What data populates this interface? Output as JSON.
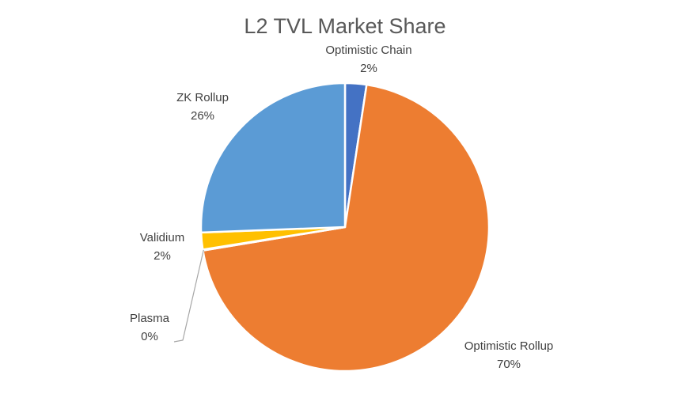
{
  "chart_data": {
    "type": "pie",
    "title": "L2 TVL Market Share",
    "categories": [
      "Optimistic Chain",
      "Optimistic Rollup",
      "Plasma",
      "Validium",
      "ZK Rollup"
    ],
    "values": [
      2.4,
      70.0,
      0.1,
      1.9,
      25.6
    ],
    "data_labels": [
      "2%",
      "70%",
      "0%",
      "2%",
      "26%"
    ],
    "colors": [
      "#4472C4",
      "#ED7D31",
      "#A5A5A5",
      "#FFC000",
      "#5B9BD5"
    ],
    "start_angle": "12 o'clock",
    "direction": "clockwise",
    "legend": "none"
  }
}
